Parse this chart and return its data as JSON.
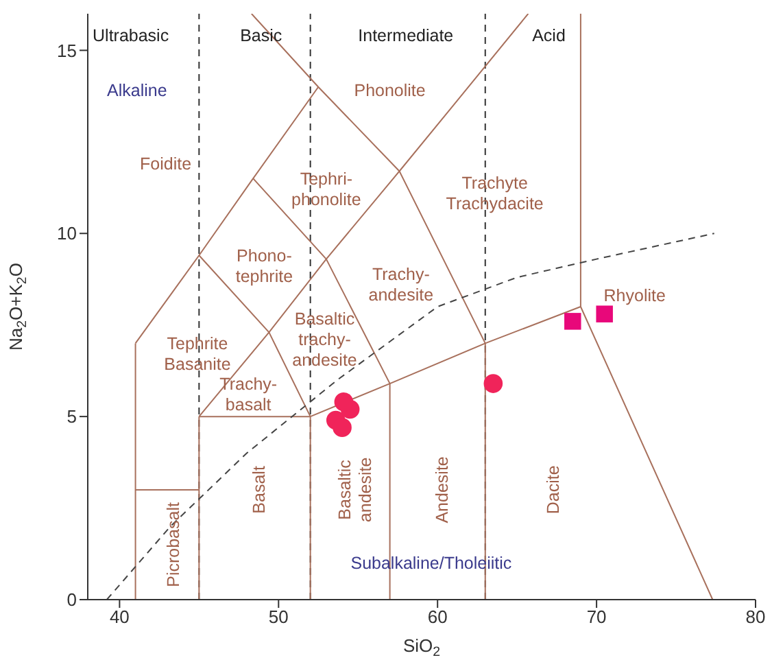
{
  "chart_data": {
    "type": "scatter",
    "xlabel": "SiO$_{2}$",
    "ylabel": "Na$_{2}$O+K$_{2}$O",
    "xlim": [
      38,
      80
    ],
    "ylim": [
      0,
      16
    ],
    "xticks": [
      40,
      50,
      60,
      70,
      80
    ],
    "yticks": [
      0,
      5,
      10,
      15
    ],
    "series": [
      {
        "type": "line",
        "color": "#a8705c",
        "x": [
          41,
          41
        ],
        "values": [
          0,
          7
        ]
      },
      {
        "type": "line",
        "color": "#a8705c",
        "x": [
          41,
          45
        ],
        "values": [
          3,
          3
        ]
      },
      {
        "type": "line",
        "color": "#a8705c",
        "x": [
          45,
          45
        ],
        "values": [
          0,
          5
        ]
      },
      {
        "type": "line",
        "color": "#a8705c",
        "x": [
          52,
          52
        ],
        "values": [
          0,
          5
        ]
      },
      {
        "type": "line",
        "color": "#a8705c",
        "x": [
          41,
          45,
          48.4,
          52.5
        ],
        "values": [
          7,
          9.4,
          11.5,
          14
        ]
      },
      {
        "type": "line",
        "color": "#a8705c",
        "x": [
          48.3,
          52.5,
          57.6,
          63
        ],
        "values": [
          16,
          14,
          11.7,
          7
        ]
      },
      {
        "type": "line",
        "color": "#a8705c",
        "x": [
          45,
          49.4,
          53,
          57.6,
          61,
          65.7
        ],
        "values": [
          5,
          7.3,
          9.3,
          11.7,
          13.5,
          16
        ]
      },
      {
        "type": "line",
        "color": "#a8705c",
        "x": [
          45,
          49.4,
          52
        ],
        "values": [
          9.4,
          7.3,
          5
        ]
      },
      {
        "type": "line",
        "color": "#a8705c",
        "x": [
          48.4,
          53,
          57
        ],
        "values": [
          11.5,
          9.3,
          5.9
        ]
      },
      {
        "type": "line",
        "color": "#a8705c",
        "x": [
          45,
          52,
          57,
          63,
          69
        ],
        "values": [
          5,
          5,
          5.9,
          7,
          8
        ]
      },
      {
        "type": "line",
        "color": "#a8705c",
        "x": [
          57,
          57
        ],
        "values": [
          0,
          5.9
        ]
      },
      {
        "type": "line",
        "color": "#a8705c",
        "x": [
          63,
          63
        ],
        "values": [
          0,
          7
        ]
      },
      {
        "type": "line",
        "color": "#a8705c",
        "x": [
          69,
          69,
          77.3
        ],
        "values": [
          16,
          8,
          0
        ]
      },
      {
        "type": "line",
        "color": "#444444",
        "line_style": "dashed",
        "x": [
          39.2,
          43.2,
          48,
          53.7,
          60,
          65,
          70,
          77.4
        ],
        "values": [
          0,
          2,
          4,
          6,
          8,
          8.8,
          9.3,
          10
        ]
      },
      {
        "color": "#f0245a",
        "marker": "circle",
        "x": [
          53.6,
          54.0,
          54.5,
          54.1,
          63.5
        ],
        "values": [
          4.9,
          4.7,
          5.2,
          5.4,
          5.9
        ]
      },
      {
        "color": "#e8087a",
        "marker": "square",
        "x": [
          68.5,
          70.5
        ],
        "values": [
          7.6,
          7.8
        ]
      }
    ],
    "ref_lines": [
      {
        "axis": "x",
        "value": 45,
        "color": "#333333",
        "line_style": "dashed"
      },
      {
        "axis": "x",
        "value": 52,
        "color": "#333333",
        "line_style": "dashed"
      },
      {
        "axis": "x",
        "value": 63,
        "color": "#333333",
        "line_style": "dashed"
      }
    ],
    "annotations": [
      "Ultrabasic",
      "Basic",
      "Intermediate",
      "Acid",
      "Alkaline",
      "Phonolite",
      "Foidite",
      "Tephri-\nphonolite",
      "Trachyte\nTrachydacite",
      "Phono-\ntephrite",
      "Trachy-\nandesite",
      "Rhyolite",
      "Tephrite\nBasanite",
      "Basaltic\ntrachy-\nandesite",
      "Trachy-\nbasalt",
      "Picrobasalt",
      "Basalt",
      "Basaltic\nandesite",
      "Andesite",
      "Dacite",
      "Subalkaline/Tholeiitic"
    ]
  }
}
